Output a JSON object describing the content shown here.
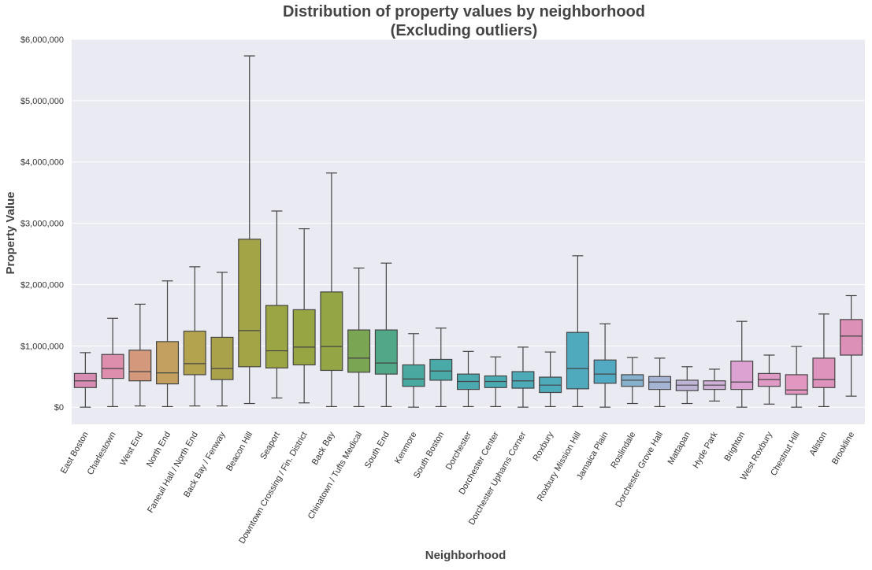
{
  "chart_data": {
    "type": "box",
    "title": "Distribution of property values by neighborhood",
    "subtitle": "(Excluding outliers)",
    "xlabel": "Neighborhood",
    "ylabel": "Property Value",
    "ylim": [
      -280000,
      6000000
    ],
    "yticks": [
      0,
      1000000,
      2000000,
      3000000,
      4000000,
      5000000,
      6000000
    ],
    "ytick_labels": [
      "$0",
      "$1,000,000",
      "$2,000,000",
      "$3,000,000",
      "$4,000,000",
      "$5,000,000",
      "$6,000,000"
    ],
    "grid": true,
    "plot_background": "#eaeaf2",
    "whisker_color": "#444444",
    "boxes": [
      {
        "category": "East Boston",
        "whislo": 0,
        "q1": 320000,
        "med": 430000,
        "q3": 550000,
        "whishi": 890000,
        "color": "#d98cb3"
      },
      {
        "category": "Charlestown",
        "whislo": 10000,
        "q1": 470000,
        "med": 630000,
        "q3": 860000,
        "whishi": 1450000,
        "color": "#dd8eac"
      },
      {
        "category": "West End",
        "whislo": 20000,
        "q1": 430000,
        "med": 580000,
        "q3": 930000,
        "whishi": 1680000,
        "color": "#d4997d"
      },
      {
        "category": "North End",
        "whislo": 10000,
        "q1": 380000,
        "med": 560000,
        "q3": 1070000,
        "whishi": 2060000,
        "color": "#c4a060"
      },
      {
        "category": "Faneuil Hall / North End",
        "whislo": 20000,
        "q1": 530000,
        "med": 710000,
        "q3": 1240000,
        "whishi": 2290000,
        "color": "#b3a24e"
      },
      {
        "category": "Back Bay / Fenway",
        "whislo": 20000,
        "q1": 450000,
        "med": 630000,
        "q3": 1140000,
        "whishi": 2200000,
        "color": "#aaa24a"
      },
      {
        "category": "Beacon Hill",
        "whislo": 60000,
        "q1": 660000,
        "med": 1250000,
        "q3": 2740000,
        "whishi": 5730000,
        "color": "#a2a446"
      },
      {
        "category": "Seaport",
        "whislo": 150000,
        "q1": 640000,
        "med": 920000,
        "q3": 1660000,
        "whishi": 3200000,
        "color": "#9ca544"
      },
      {
        "category": "Downtown Crossing / Fin. District",
        "whislo": 70000,
        "q1": 690000,
        "med": 980000,
        "q3": 1590000,
        "whishi": 2910000,
        "color": "#97a543"
      },
      {
        "category": "Back Bay",
        "whislo": 10000,
        "q1": 600000,
        "med": 990000,
        "q3": 1880000,
        "whishi": 3820000,
        "color": "#93a544"
      },
      {
        "category": "Chinatown / Tufts Medical",
        "whislo": 10000,
        "q1": 570000,
        "med": 800000,
        "q3": 1260000,
        "whishi": 2270000,
        "color": "#7aa653"
      },
      {
        "category": "South End",
        "whislo": 10000,
        "q1": 540000,
        "med": 720000,
        "q3": 1260000,
        "whishi": 2350000,
        "color": "#50a889"
      },
      {
        "category": "Kenmore",
        "whislo": 0,
        "q1": 340000,
        "med": 460000,
        "q3": 690000,
        "whishi": 1200000,
        "color": "#49a9a0"
      },
      {
        "category": "South Boston",
        "whislo": 10000,
        "q1": 440000,
        "med": 590000,
        "q3": 780000,
        "whishi": 1290000,
        "color": "#49aaa8"
      },
      {
        "category": "Dorchester",
        "whislo": 10000,
        "q1": 290000,
        "med": 420000,
        "q3": 540000,
        "whishi": 910000,
        "color": "#4aaaaf"
      },
      {
        "category": "Dorchester Center",
        "whislo": 10000,
        "q1": 320000,
        "med": 420000,
        "q3": 510000,
        "whishi": 820000,
        "color": "#4babb3"
      },
      {
        "category": "Dorchester Uphams Corner",
        "whislo": 0,
        "q1": 310000,
        "med": 430000,
        "q3": 580000,
        "whishi": 980000,
        "color": "#4cabb7"
      },
      {
        "category": "Roxbury",
        "whislo": 10000,
        "q1": 240000,
        "med": 360000,
        "q3": 490000,
        "whishi": 900000,
        "color": "#4eabba"
      },
      {
        "category": "Roxbury Mission Hill",
        "whislo": 10000,
        "q1": 300000,
        "med": 630000,
        "q3": 1220000,
        "whishi": 2470000,
        "color": "#50aabd"
      },
      {
        "category": "Jamaica Plain",
        "whislo": 0,
        "q1": 390000,
        "med": 540000,
        "q3": 770000,
        "whishi": 1360000,
        "color": "#52aac2"
      },
      {
        "category": "Roslindale",
        "whislo": 60000,
        "q1": 340000,
        "med": 440000,
        "q3": 530000,
        "whishi": 810000,
        "color": "#86b0cc"
      },
      {
        "category": "Dorchester Grove Hall",
        "whislo": 10000,
        "q1": 290000,
        "med": 410000,
        "q3": 500000,
        "whishi": 800000,
        "color": "#a6b4d4"
      },
      {
        "category": "Mattapan",
        "whislo": 60000,
        "q1": 270000,
        "med": 360000,
        "q3": 440000,
        "whishi": 660000,
        "color": "#bfb4d6"
      },
      {
        "category": "Hyde Park",
        "whislo": 100000,
        "q1": 290000,
        "med": 360000,
        "q3": 430000,
        "whishi": 620000,
        "color": "#cfb0d8"
      },
      {
        "category": "Brighton",
        "whislo": 0,
        "q1": 290000,
        "med": 410000,
        "q3": 750000,
        "whishi": 1400000,
        "color": "#dca2d2"
      },
      {
        "category": "West Roxbury",
        "whislo": 50000,
        "q1": 340000,
        "med": 450000,
        "q3": 550000,
        "whishi": 850000,
        "color": "#e09ac6"
      },
      {
        "category": "Chestnut Hill",
        "whislo": 0,
        "q1": 210000,
        "med": 280000,
        "q3": 530000,
        "whishi": 990000,
        "color": "#e197c0"
      },
      {
        "category": "Allston",
        "whislo": 10000,
        "q1": 320000,
        "med": 450000,
        "q3": 800000,
        "whishi": 1520000,
        "color": "#de93bc"
      },
      {
        "category": "Brookline",
        "whislo": 180000,
        "q1": 850000,
        "med": 1160000,
        "q3": 1430000,
        "whishi": 1820000,
        "color": "#dc90b8"
      }
    ]
  }
}
